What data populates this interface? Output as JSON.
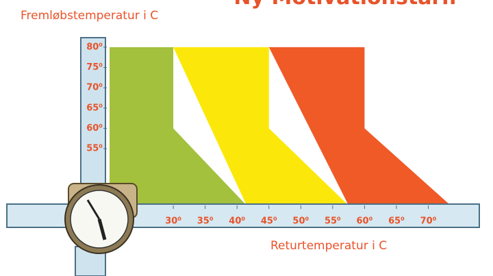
{
  "chart_data": {
    "type": "zones",
    "title": "Ny Motivationstarif",
    "y_label": "Fremløbstemperatur i C",
    "x_label": "Returtemperatur i C",
    "xlim": [
      20,
      78
    ],
    "ylim": [
      41,
      81
    ],
    "xticks": [
      {
        "value": 30,
        "label": "30⁰"
      },
      {
        "value": 35,
        "label": "35⁰"
      },
      {
        "value": 40,
        "label": "40⁰"
      },
      {
        "value": 45,
        "label": "45⁰"
      },
      {
        "value": 50,
        "label": "50⁰"
      },
      {
        "value": 55,
        "label": "55⁰"
      },
      {
        "value": 60,
        "label": "60⁰"
      },
      {
        "value": 65,
        "label": "65⁰"
      },
      {
        "value": 70,
        "label": "70⁰"
      }
    ],
    "yticks": [
      {
        "value": 55,
        "label": "55⁰"
      },
      {
        "value": 60,
        "label": "60⁰"
      },
      {
        "value": 65,
        "label": "65⁰"
      },
      {
        "value": 70,
        "label": "70⁰"
      },
      {
        "value": 75,
        "label": "75⁰"
      },
      {
        "value": 80,
        "label": "80⁰"
      }
    ],
    "series": [
      {
        "color": "#a3c13d",
        "x": [
          20,
          30,
          30,
          41.5,
          20
        ],
        "y": [
          80,
          80,
          60,
          41,
          41
        ]
      },
      {
        "color": "#fbe80a",
        "x": [
          30,
          45,
          45,
          57.5,
          41.5
        ],
        "y": [
          80,
          80,
          60,
          41,
          41
        ]
      },
      {
        "color": "#ef5a27",
        "x": [
          45,
          60,
          60,
          73.5,
          57.5
        ],
        "y": [
          80,
          80,
          60,
          41,
          41
        ]
      }
    ]
  }
}
